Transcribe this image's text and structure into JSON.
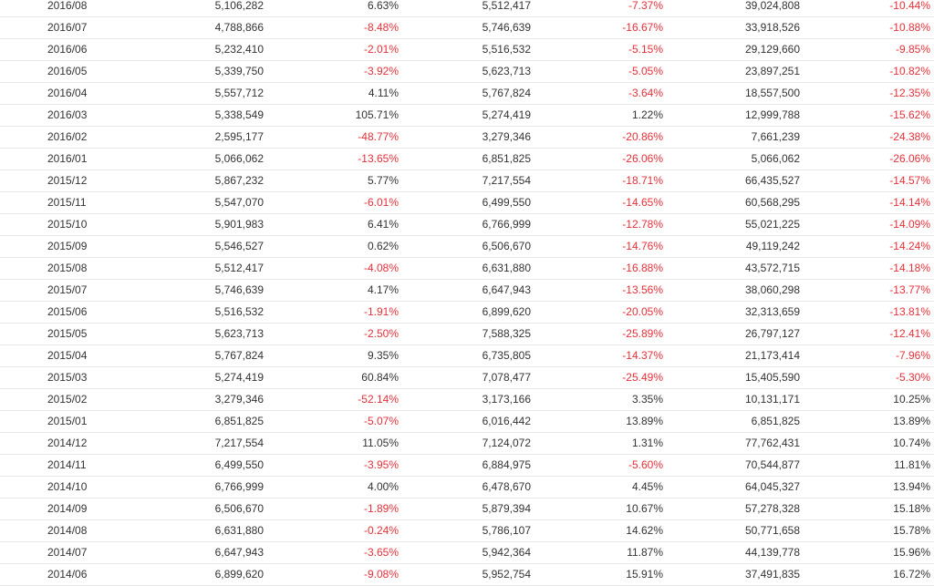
{
  "colors": {
    "negative": "#e8303a",
    "text": "#333333",
    "row_border": "#e6e6e6"
  },
  "table": {
    "rows": [
      [
        "2016/08",
        "5,106,282",
        "6.63%",
        "5,512,417",
        "-7.37%",
        "39,024,808",
        "-10.44%"
      ],
      [
        "2016/07",
        "4,788,866",
        "-8.48%",
        "5,746,639",
        "-16.67%",
        "33,918,526",
        "-10.88%"
      ],
      [
        "2016/06",
        "5,232,410",
        "-2.01%",
        "5,516,532",
        "-5.15%",
        "29,129,660",
        "-9.85%"
      ],
      [
        "2016/05",
        "5,339,750",
        "-3.92%",
        "5,623,713",
        "-5.05%",
        "23,897,251",
        "-10.82%"
      ],
      [
        "2016/04",
        "5,557,712",
        "4.11%",
        "5,767,824",
        "-3.64%",
        "18,557,500",
        "-12.35%"
      ],
      [
        "2016/03",
        "5,338,549",
        "105.71%",
        "5,274,419",
        "1.22%",
        "12,999,788",
        "-15.62%"
      ],
      [
        "2016/02",
        "2,595,177",
        "-48.77%",
        "3,279,346",
        "-20.86%",
        "7,661,239",
        "-24.38%"
      ],
      [
        "2016/01",
        "5,066,062",
        "-13.65%",
        "6,851,825",
        "-26.06%",
        "5,066,062",
        "-26.06%"
      ],
      [
        "2015/12",
        "5,867,232",
        "5.77%",
        "7,217,554",
        "-18.71%",
        "66,435,527",
        "-14.57%"
      ],
      [
        "2015/11",
        "5,547,070",
        "-6.01%",
        "6,499,550",
        "-14.65%",
        "60,568,295",
        "-14.14%"
      ],
      [
        "2015/10",
        "5,901,983",
        "6.41%",
        "6,766,999",
        "-12.78%",
        "55,021,225",
        "-14.09%"
      ],
      [
        "2015/09",
        "5,546,527",
        "0.62%",
        "6,506,670",
        "-14.76%",
        "49,119,242",
        "-14.24%"
      ],
      [
        "2015/08",
        "5,512,417",
        "-4.08%",
        "6,631,880",
        "-16.88%",
        "43,572,715",
        "-14.18%"
      ],
      [
        "2015/07",
        "5,746,639",
        "4.17%",
        "6,647,943",
        "-13.56%",
        "38,060,298",
        "-13.77%"
      ],
      [
        "2015/06",
        "5,516,532",
        "-1.91%",
        "6,899,620",
        "-20.05%",
        "32,313,659",
        "-13.81%"
      ],
      [
        "2015/05",
        "5,623,713",
        "-2.50%",
        "7,588,325",
        "-25.89%",
        "26,797,127",
        "-12.41%"
      ],
      [
        "2015/04",
        "5,767,824",
        "9.35%",
        "6,735,805",
        "-14.37%",
        "21,173,414",
        "-7.96%"
      ],
      [
        "2015/03",
        "5,274,419",
        "60.84%",
        "7,078,477",
        "-25.49%",
        "15,405,590",
        "-5.30%"
      ],
      [
        "2015/02",
        "3,279,346",
        "-52.14%",
        "3,173,166",
        "3.35%",
        "10,131,171",
        "10.25%"
      ],
      [
        "2015/01",
        "6,851,825",
        "-5.07%",
        "6,016,442",
        "13.89%",
        "6,851,825",
        "13.89%"
      ],
      [
        "2014/12",
        "7,217,554",
        "11.05%",
        "7,124,072",
        "1.31%",
        "77,762,431",
        "10.74%"
      ],
      [
        "2014/11",
        "6,499,550",
        "-3.95%",
        "6,884,975",
        "-5.60%",
        "70,544,877",
        "11.81%"
      ],
      [
        "2014/10",
        "6,766,999",
        "4.00%",
        "6,478,670",
        "4.45%",
        "64,045,327",
        "13.94%"
      ],
      [
        "2014/09",
        "6,506,670",
        "-1.89%",
        "5,879,394",
        "10.67%",
        "57,278,328",
        "15.18%"
      ],
      [
        "2014/08",
        "6,631,880",
        "-0.24%",
        "5,786,107",
        "14.62%",
        "50,771,658",
        "15.78%"
      ],
      [
        "2014/07",
        "6,647,943",
        "-3.65%",
        "5,942,364",
        "11.87%",
        "44,139,778",
        "15.96%"
      ],
      [
        "2014/06",
        "6,899,620",
        "-9.08%",
        "5,952,754",
        "15.91%",
        "37,491,835",
        "16.72%"
      ]
    ]
  }
}
